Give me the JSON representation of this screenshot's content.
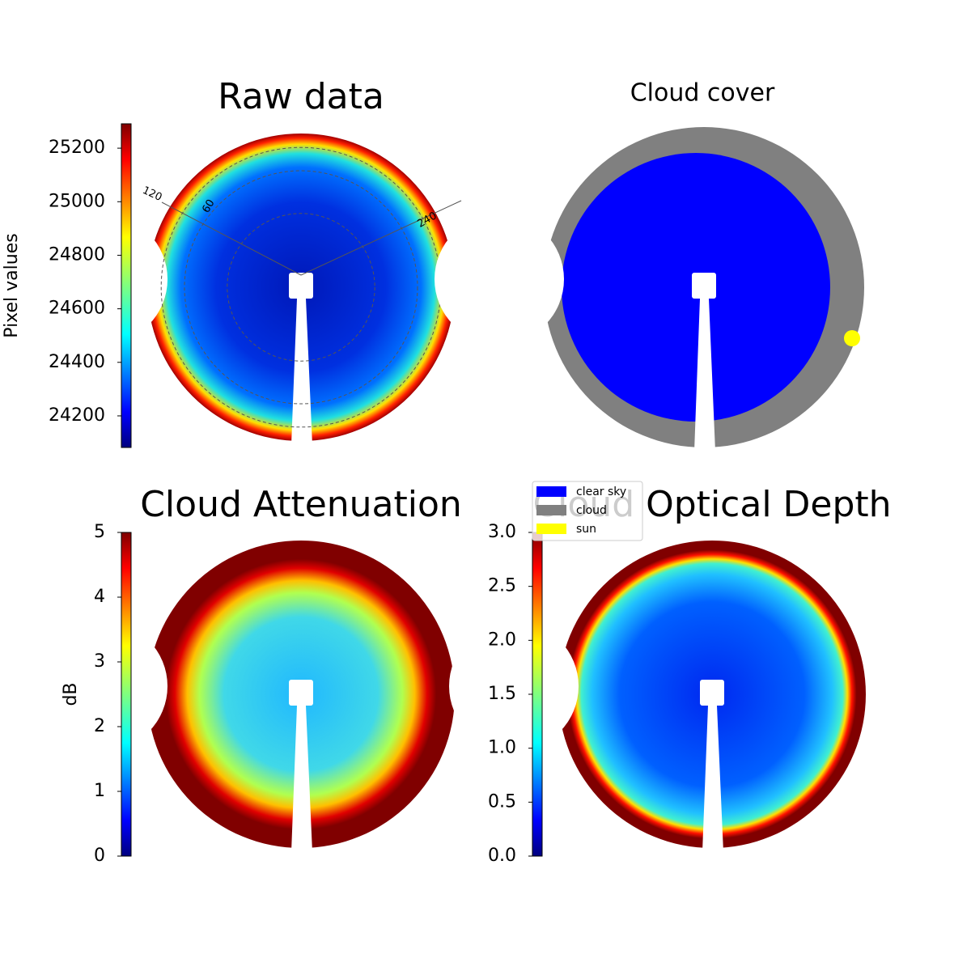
{
  "chart_data": [
    {
      "type": "image",
      "title": "Raw data",
      "colormap": "jet",
      "ylabel": "Pixel values",
      "ylim": [
        24082,
        25291
      ],
      "yticks": [
        24200,
        24400,
        24600,
        24800,
        25000,
        25200
      ],
      "annotations": [
        "120",
        "60",
        "240"
      ]
    },
    {
      "type": "mask",
      "title": "Cloud cover",
      "legend": [
        {
          "name": "clear sky",
          "color": "#0000ff"
        },
        {
          "name": "cloud",
          "color": "#808080"
        },
        {
          "name": "sun",
          "color": "#ffff00"
        }
      ]
    },
    {
      "type": "image",
      "title": "Cloud Attenuation",
      "colormap": "jet",
      "ylabel": "dB",
      "ylim": [
        0,
        5
      ],
      "yticks": [
        0,
        1,
        2,
        3,
        4,
        5
      ]
    },
    {
      "type": "image",
      "title": "Cloud Optical Depth",
      "colormap": "jet",
      "ylim": [
        0,
        3
      ],
      "yticks": [
        {
          "value": 0,
          "label": "0.0"
        },
        0.5,
        {
          "value": 1,
          "label": "1.0"
        },
        1.5,
        {
          "value": 2,
          "label": "2.0"
        },
        2.5,
        {
          "value": 3,
          "label": "3.0"
        }
      ]
    }
  ]
}
